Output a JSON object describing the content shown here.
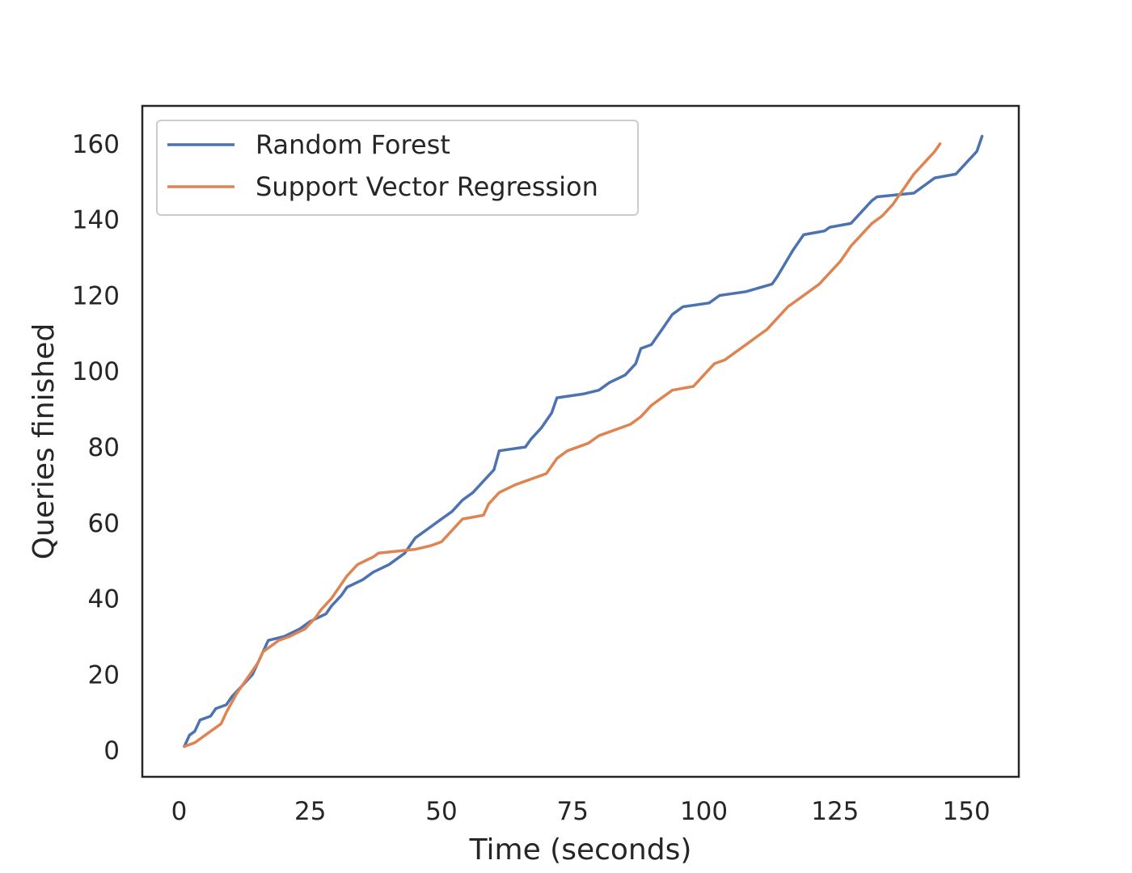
{
  "chart_data": {
    "type": "line",
    "title": "",
    "xlabel": "Time (seconds)",
    "ylabel": "Queries finished",
    "xlim": [
      -7,
      160
    ],
    "ylim": [
      -7,
      170
    ],
    "xticks": [
      0,
      25,
      50,
      75,
      100,
      125,
      150
    ],
    "yticks": [
      0,
      20,
      40,
      60,
      80,
      100,
      120,
      140,
      160
    ],
    "grid": false,
    "legend_position": "top-left",
    "series": [
      {
        "name": "Random Forest",
        "color": "#4c72b0",
        "points": [
          [
            1,
            1
          ],
          [
            2,
            4
          ],
          [
            3,
            5
          ],
          [
            4,
            8
          ],
          [
            6,
            9
          ],
          [
            7,
            11
          ],
          [
            9,
            12
          ],
          [
            10,
            14
          ],
          [
            12,
            17
          ],
          [
            14,
            20
          ],
          [
            15,
            23
          ],
          [
            16,
            26
          ],
          [
            17,
            29
          ],
          [
            20,
            30
          ],
          [
            23,
            32
          ],
          [
            25,
            34
          ],
          [
            28,
            36
          ],
          [
            29,
            38
          ],
          [
            31,
            41
          ],
          [
            32,
            43
          ],
          [
            35,
            45
          ],
          [
            37,
            47
          ],
          [
            40,
            49
          ],
          [
            43,
            52
          ],
          [
            45,
            56
          ],
          [
            47,
            58
          ],
          [
            48,
            59
          ],
          [
            50,
            61
          ],
          [
            52,
            63
          ],
          [
            54,
            66
          ],
          [
            56,
            68
          ],
          [
            58,
            71
          ],
          [
            60,
            74
          ],
          [
            61,
            79
          ],
          [
            66,
            80
          ],
          [
            67,
            82
          ],
          [
            69,
            85
          ],
          [
            71,
            89
          ],
          [
            72,
            93
          ],
          [
            77,
            94
          ],
          [
            80,
            95
          ],
          [
            82,
            97
          ],
          [
            85,
            99
          ],
          [
            87,
            102
          ],
          [
            88,
            106
          ],
          [
            90,
            107
          ],
          [
            92,
            111
          ],
          [
            94,
            115
          ],
          [
            96,
            117
          ],
          [
            101,
            118
          ],
          [
            103,
            120
          ],
          [
            108,
            121
          ],
          [
            113,
            123
          ],
          [
            114,
            125
          ],
          [
            117,
            132
          ],
          [
            119,
            136
          ],
          [
            123,
            137
          ],
          [
            124,
            138
          ],
          [
            128,
            139
          ],
          [
            130,
            142
          ],
          [
            132,
            145
          ],
          [
            133,
            146
          ],
          [
            140,
            147
          ],
          [
            144,
            151
          ],
          [
            148,
            152
          ],
          [
            150,
            155
          ],
          [
            152,
            158
          ],
          [
            153,
            162
          ]
        ]
      },
      {
        "name": "Support Vector Regression",
        "color": "#dd8452",
        "points": [
          [
            1,
            1
          ],
          [
            2,
            1.5
          ],
          [
            3,
            2
          ],
          [
            5,
            4
          ],
          [
            6,
            5
          ],
          [
            8,
            7
          ],
          [
            9,
            10
          ],
          [
            11,
            15
          ],
          [
            13,
            19
          ],
          [
            15,
            23
          ],
          [
            16,
            26
          ],
          [
            18,
            28
          ],
          [
            19,
            29
          ],
          [
            21,
            30
          ],
          [
            24,
            32
          ],
          [
            26,
            35
          ],
          [
            27,
            37
          ],
          [
            29,
            40
          ],
          [
            30,
            42
          ],
          [
            32,
            46
          ],
          [
            34,
            49
          ],
          [
            37,
            51
          ],
          [
            38,
            52
          ],
          [
            45,
            53
          ],
          [
            48,
            54
          ],
          [
            50,
            55
          ],
          [
            52,
            58
          ],
          [
            54,
            61
          ],
          [
            58,
            62
          ],
          [
            59,
            65
          ],
          [
            61,
            68
          ],
          [
            64,
            70
          ],
          [
            66,
            71
          ],
          [
            70,
            73
          ],
          [
            72,
            77
          ],
          [
            74,
            79
          ],
          [
            78,
            81
          ],
          [
            80,
            83
          ],
          [
            82,
            84
          ],
          [
            84,
            85
          ],
          [
            86,
            86
          ],
          [
            88,
            88
          ],
          [
            90,
            91
          ],
          [
            92,
            93
          ],
          [
            94,
            95
          ],
          [
            98,
            96
          ],
          [
            100,
            99
          ],
          [
            102,
            102
          ],
          [
            104,
            103
          ],
          [
            106,
            105
          ],
          [
            108,
            107
          ],
          [
            110,
            109
          ],
          [
            112,
            111
          ],
          [
            114,
            114
          ],
          [
            116,
            117
          ],
          [
            118,
            119
          ],
          [
            120,
            121
          ],
          [
            122,
            123
          ],
          [
            124,
            126
          ],
          [
            126,
            129
          ],
          [
            128,
            133
          ],
          [
            130,
            136
          ],
          [
            132,
            139
          ],
          [
            134,
            141
          ],
          [
            136,
            144
          ],
          [
            138,
            148
          ],
          [
            140,
            152
          ],
          [
            142,
            155
          ],
          [
            144,
            158
          ],
          [
            145,
            160
          ]
        ]
      }
    ]
  }
}
